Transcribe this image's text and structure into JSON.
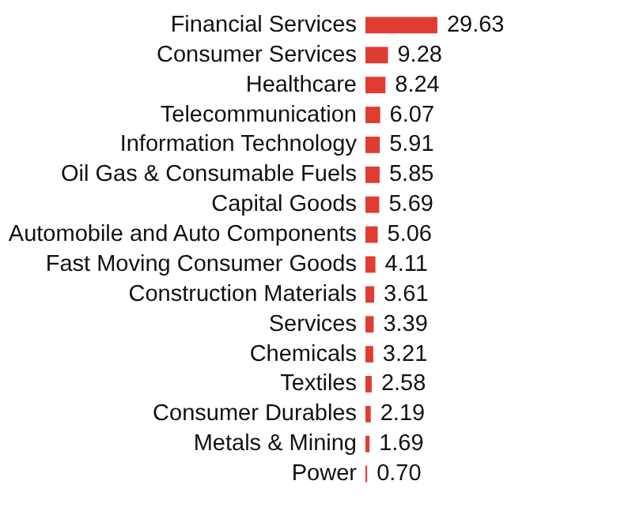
{
  "chart_data": {
    "type": "bar",
    "orientation": "horizontal",
    "color": "#e03c31",
    "categories": [
      "Financial Services",
      "Consumer Services",
      "Healthcare",
      "Telecommunication",
      "Information Technology",
      "Oil Gas & Consumable Fuels",
      "Capital Goods",
      "Automobile and Auto Components",
      "Fast Moving Consumer Goods",
      "Construction Materials",
      "Services",
      "Chemicals",
      "Textiles",
      "Consumer Durables",
      "Metals & Mining",
      "Power"
    ],
    "values": [
      29.63,
      9.28,
      8.24,
      6.07,
      5.91,
      5.85,
      5.69,
      5.06,
      4.11,
      3.61,
      3.39,
      3.21,
      2.58,
      2.19,
      1.69,
      0.7
    ],
    "value_labels": [
      "29.63",
      "9.28",
      "8.24",
      "6.07",
      "5.91",
      "5.85",
      "5.69",
      "5.06",
      "4.11",
      "3.61",
      "3.39",
      "3.21",
      "2.58",
      "2.19",
      "1.69",
      "0.70"
    ]
  }
}
